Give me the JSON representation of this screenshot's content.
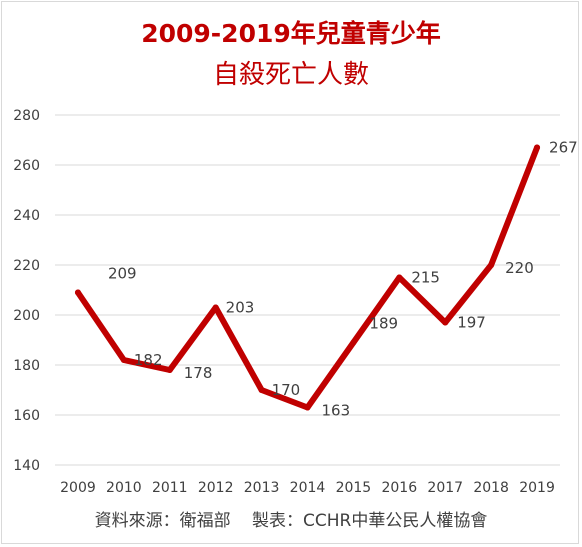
{
  "title": {
    "line1": "2009-2019年兒童青少年",
    "line2": "自殺死亡人數"
  },
  "source": {
    "data_source": "資料來源：衛福部",
    "maker": "製表：CCHR中華公民人權協會"
  },
  "colors": {
    "line": "#c00000",
    "title": "#c00000",
    "grid": "#d9d9d9",
    "text": "#404040"
  },
  "chart_data": {
    "type": "line",
    "categories": [
      "2009",
      "2010",
      "2011",
      "2012",
      "2013",
      "2014",
      "2015",
      "2016",
      "2017",
      "2018",
      "2019"
    ],
    "series": [
      {
        "values": [
          209,
          182,
          178,
          203,
          170,
          163,
          189,
          215,
          197,
          220,
          267
        ]
      }
    ],
    "data_labels": [
      "209",
      "182",
      "178",
      "203",
      "170",
      "163",
      "189",
      "215",
      "197",
      "220",
      "267"
    ],
    "yticks": [
      "140",
      "160",
      "180",
      "200",
      "220",
      "240",
      "260",
      "280"
    ],
    "ylim": [
      140,
      280
    ],
    "grid": true,
    "legend": "none"
  }
}
